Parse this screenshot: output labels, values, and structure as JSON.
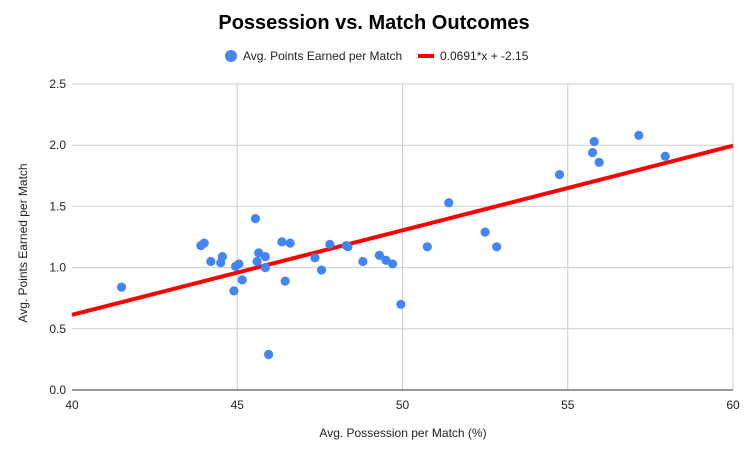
{
  "chart_data": {
    "type": "scatter",
    "title": "Possession vs. Match Outcomes",
    "xlabel": "Avg. Possession per Match (%)",
    "ylabel": "Avg. Points Earned per Match",
    "xlim": [
      40,
      60
    ],
    "ylim": [
      0,
      2.5
    ],
    "x_ticks": [
      "40",
      "45",
      "50",
      "55",
      "60"
    ],
    "y_ticks": [
      "0.0",
      "0.5",
      "1.0",
      "1.5",
      "2.0",
      "2.5"
    ],
    "grid": true,
    "legend_position": "top",
    "series": [
      {
        "name": "Avg. Points Earned per Match",
        "color": "#4285f4",
        "points": [
          [
            41.5,
            0.84
          ],
          [
            43.9,
            1.18
          ],
          [
            44.0,
            1.2
          ],
          [
            44.2,
            1.05
          ],
          [
            44.5,
            1.04
          ],
          [
            44.55,
            1.09
          ],
          [
            44.9,
            0.81
          ],
          [
            44.95,
            1.01
          ],
          [
            45.05,
            1.03
          ],
          [
            45.15,
            0.9
          ],
          [
            45.55,
            1.4
          ],
          [
            45.6,
            1.05
          ],
          [
            45.65,
            1.12
          ],
          [
            45.85,
            1.0
          ],
          [
            45.85,
            1.09
          ],
          [
            45.95,
            0.29
          ],
          [
            46.35,
            1.21
          ],
          [
            46.45,
            0.89
          ],
          [
            46.6,
            1.2
          ],
          [
            47.35,
            1.08
          ],
          [
            47.55,
            0.98
          ],
          [
            47.8,
            1.19
          ],
          [
            48.3,
            1.18
          ],
          [
            48.35,
            1.17
          ],
          [
            48.8,
            1.05
          ],
          [
            49.3,
            1.1
          ],
          [
            49.5,
            1.06
          ],
          [
            49.7,
            1.03
          ],
          [
            49.95,
            0.7
          ],
          [
            50.75,
            1.17
          ],
          [
            51.4,
            1.53
          ],
          [
            52.5,
            1.29
          ],
          [
            52.85,
            1.17
          ],
          [
            54.75,
            1.76
          ],
          [
            55.75,
            1.94
          ],
          [
            55.8,
            2.03
          ],
          [
            55.95,
            1.86
          ],
          [
            57.15,
            2.08
          ],
          [
            57.95,
            1.91
          ]
        ]
      },
      {
        "name": "0.0691*x + -2.15",
        "type": "trendline",
        "color": "#ff0000",
        "slope": 0.0691,
        "intercept": -2.15
      }
    ]
  }
}
